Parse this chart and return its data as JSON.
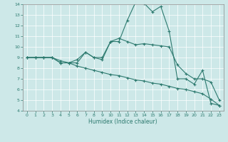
{
  "xlabel": "Humidex (Indice chaleur)",
  "xlim": [
    -0.5,
    23.5
  ],
  "ylim": [
    4,
    14
  ],
  "yticks": [
    4,
    5,
    6,
    7,
    8,
    9,
    10,
    11,
    12,
    13,
    14
  ],
  "xticks": [
    0,
    1,
    2,
    3,
    4,
    5,
    6,
    7,
    8,
    9,
    10,
    11,
    12,
    13,
    14,
    15,
    16,
    17,
    18,
    19,
    20,
    21,
    22,
    23
  ],
  "bg_color": "#cde8e8",
  "line_color": "#2d7a6f",
  "series1_x": [
    0,
    1,
    2,
    3,
    4,
    5,
    6,
    7,
    8,
    9,
    10,
    11,
    12,
    13,
    14,
    15,
    16,
    17,
    18,
    19,
    20,
    21,
    22,
    23
  ],
  "series1_y": [
    9,
    9,
    9,
    9,
    8.5,
    8.5,
    8.5,
    9.5,
    9,
    9,
    10.5,
    10.5,
    12.5,
    14.2,
    14.1,
    13.3,
    13.8,
    11.5,
    7,
    7,
    6.5,
    7.8,
    4.7,
    4.5
  ],
  "series2_x": [
    0,
    1,
    2,
    3,
    4,
    5,
    6,
    7,
    8,
    9,
    10,
    11,
    12,
    13,
    14,
    15,
    16,
    17,
    18,
    19,
    20,
    21,
    22,
    23
  ],
  "series2_y": [
    9.0,
    9.0,
    9.0,
    9.0,
    8.7,
    8.5,
    8.2,
    8.0,
    7.8,
    7.6,
    7.4,
    7.3,
    7.1,
    6.9,
    6.8,
    6.6,
    6.5,
    6.3,
    6.1,
    6.0,
    5.8,
    5.6,
    5.1,
    4.5
  ],
  "series3_x": [
    0,
    1,
    2,
    3,
    4,
    5,
    6,
    7,
    8,
    9,
    10,
    11,
    12,
    13,
    14,
    15,
    16,
    17,
    18,
    19,
    20,
    21,
    22,
    23
  ],
  "series3_y": [
    9,
    9,
    9,
    9,
    8.5,
    8.5,
    8.8,
    9.5,
    9,
    8.8,
    10.5,
    10.8,
    10.5,
    10.2,
    10.3,
    10.2,
    10.1,
    10.0,
    8.3,
    7.5,
    7.0,
    7.0,
    6.7,
    5.0
  ]
}
